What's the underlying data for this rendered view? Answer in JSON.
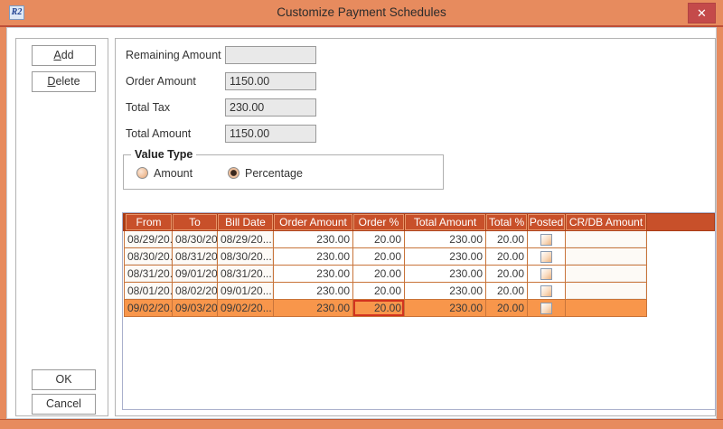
{
  "window": {
    "title": "Customize Payment Schedules",
    "icon_text": "R2",
    "close_glyph": "✕"
  },
  "sidebar": {
    "add_label": "Add",
    "delete_label": "Delete",
    "ok_label": "OK",
    "cancel_label": "Cancel"
  },
  "form": {
    "fields": [
      {
        "label": "Remaining Amount",
        "value": ""
      },
      {
        "label": "Order Amount",
        "value": "1150.00"
      },
      {
        "label": "Total Tax",
        "value": "230.00"
      },
      {
        "label": "Total Amount",
        "value": "1150.00"
      }
    ]
  },
  "value_type": {
    "legend": "Value Type",
    "options": [
      {
        "label": "Amount",
        "selected": false
      },
      {
        "label": "Percentage",
        "selected": true
      }
    ]
  },
  "table": {
    "columns": [
      "From",
      "To",
      "Bill Date",
      "Order Amount",
      "Order %",
      "Total Amount",
      "Total %",
      "Posted",
      "CR/DB Amount"
    ],
    "rows": [
      {
        "from": "08/29/20...",
        "to": "08/30/20...",
        "bill_date": "08/29/20...",
        "order_amount": "230.00",
        "order_pct": "20.00",
        "total_amount": "230.00",
        "total_pct": "20.00",
        "posted": false,
        "crdb_amount": "",
        "selected": false
      },
      {
        "from": "08/30/20...",
        "to": "08/31/20...",
        "bill_date": "08/30/20...",
        "order_amount": "230.00",
        "order_pct": "20.00",
        "total_amount": "230.00",
        "total_pct": "20.00",
        "posted": false,
        "crdb_amount": "",
        "selected": false
      },
      {
        "from": "08/31/20...",
        "to": "09/01/20...",
        "bill_date": "08/31/20...",
        "order_amount": "230.00",
        "order_pct": "20.00",
        "total_amount": "230.00",
        "total_pct": "20.00",
        "posted": false,
        "crdb_amount": "",
        "selected": false
      },
      {
        "from": "08/01/20...",
        "to": "08/02/20...",
        "bill_date": "09/01/20...",
        "order_amount": "230.00",
        "order_pct": "20.00",
        "total_amount": "230.00",
        "total_pct": "20.00",
        "posted": false,
        "crdb_amount": "",
        "selected": false
      },
      {
        "from": "09/02/20...",
        "to": "09/03/20...",
        "bill_date": "09/02/20...",
        "order_amount": "230.00",
        "order_pct": "20.00",
        "total_amount": "230.00",
        "total_pct": "20.00",
        "posted": false,
        "crdb_amount": "",
        "selected": true
      }
    ],
    "active_cell_column": "order_pct"
  },
  "colors": {
    "titlebar": "#E78B5E",
    "close_button": "#C44A4A",
    "table_header": "#C8502A",
    "selected_row": "#F8964B",
    "active_cell_border": "#D2331F",
    "grid_line": "#C8743A"
  }
}
